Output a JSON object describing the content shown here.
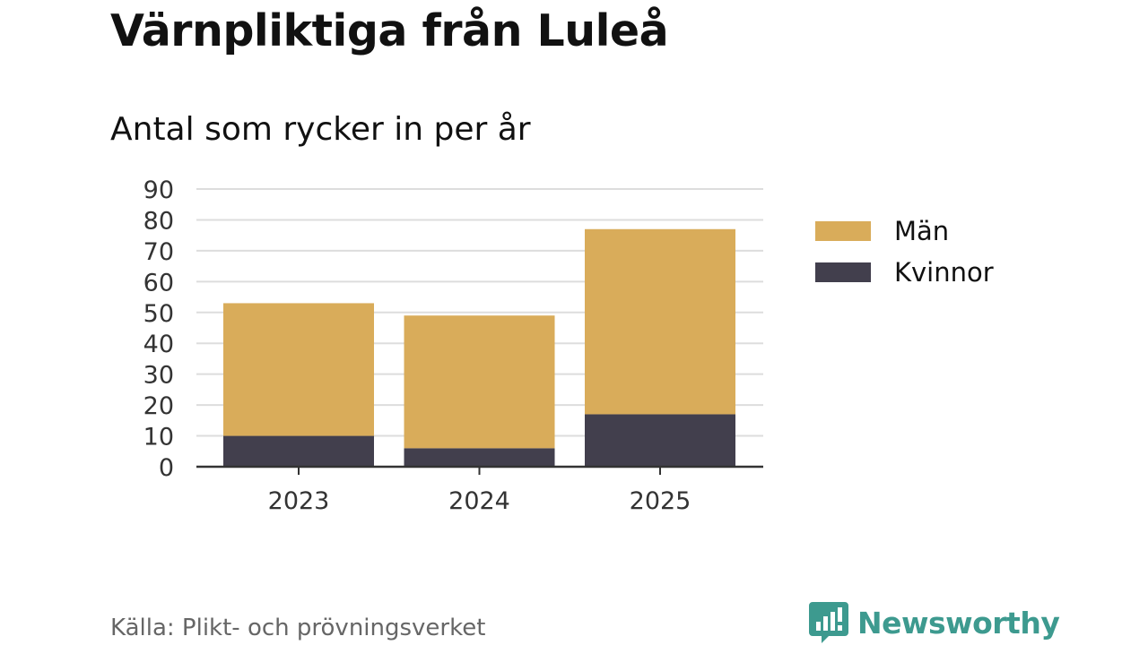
{
  "title": "Värnpliktiga från Luleå",
  "subtitle": "Antal som rycker in per år",
  "source": "Källa: Plikt- och prövningsverket",
  "brand": "Newsworthy",
  "colors": {
    "man": "#d9ac5a",
    "kvinnor": "#423f4d",
    "grid": "#dddddd",
    "axis": "#333333",
    "brand": "#3d9a8f"
  },
  "chart_data": {
    "type": "bar",
    "stacked": true,
    "categories": [
      "2023",
      "2024",
      "2025"
    ],
    "series": [
      {
        "name": "Kvinnor",
        "values": [
          10,
          6,
          17
        ]
      },
      {
        "name": "Män",
        "values": [
          43,
          43,
          60
        ]
      }
    ],
    "legend": [
      "Män",
      "Kvinnor"
    ],
    "legend_position": "right",
    "ylim": [
      0,
      90
    ],
    "yticks": [
      0,
      10,
      20,
      30,
      40,
      50,
      60,
      70,
      80,
      90
    ],
    "grid": true,
    "title": "Värnpliktiga från Luleå",
    "subtitle": "Antal som rycker in per år",
    "xlabel": "",
    "ylabel": ""
  }
}
